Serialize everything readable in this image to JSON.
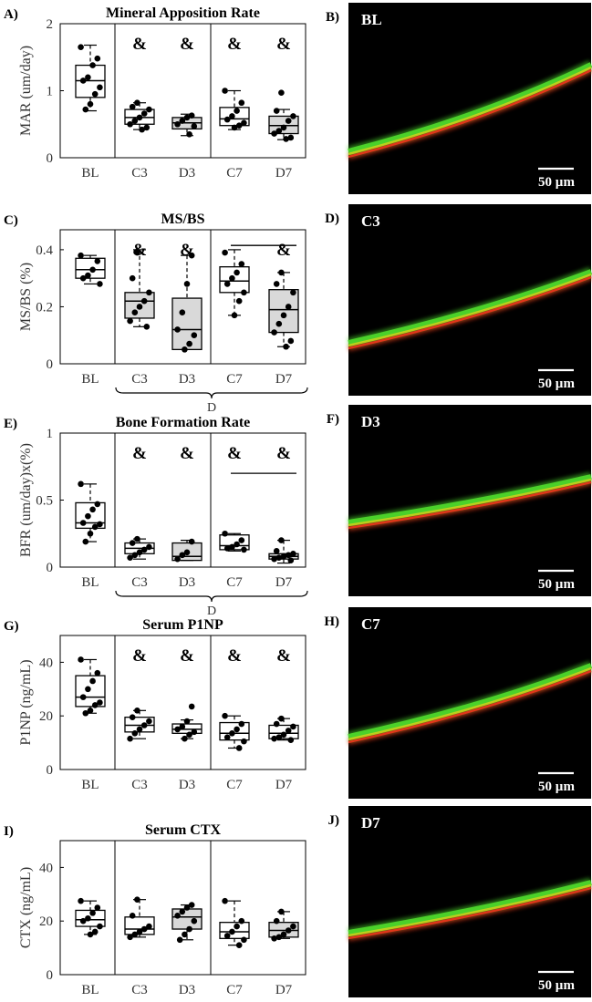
{
  "figure": {
    "panel_letters": [
      "A)",
      "B)",
      "C)",
      "D)",
      "E)",
      "F)",
      "G)",
      "H)",
      "I)",
      "J)"
    ],
    "colors": {
      "box_fill_control": "#ffffff",
      "box_fill_disuse": "#d9d9d9",
      "points": "#000000",
      "image_bg": "#000000",
      "green": "#4bd12a",
      "red": "#e0361a",
      "yellow": "#c9d21c"
    }
  },
  "chart_data": [
    {
      "id": "A",
      "type": "box",
      "title": "Mineral Apposition Rate",
      "ylabel": "MAR (um/day)",
      "ylim": [
        0,
        2
      ],
      "yticks": [
        0,
        1,
        2
      ],
      "categories": [
        "BL",
        "C3",
        "D3",
        "C7",
        "D7"
      ],
      "shaded": [
        false,
        false,
        true,
        false,
        true
      ],
      "boxes": [
        {
          "q1": 0.9,
          "median": 1.15,
          "q3": 1.38,
          "lo": 0.7,
          "hi": 1.68
        },
        {
          "q1": 0.5,
          "median": 0.6,
          "q3": 0.72,
          "lo": 0.42,
          "hi": 0.82
        },
        {
          "q1": 0.43,
          "median": 0.52,
          "q3": 0.6,
          "lo": 0.33,
          "hi": 0.65
        },
        {
          "q1": 0.48,
          "median": 0.58,
          "q3": 0.75,
          "lo": 0.42,
          "hi": 1.0
        },
        {
          "q1": 0.36,
          "median": 0.48,
          "q3": 0.62,
          "lo": 0.27,
          "hi": 0.72
        }
      ],
      "points": [
        [
          1.65,
          1.48,
          1.38,
          1.2,
          1.15,
          1.05,
          0.95,
          0.8,
          0.72
        ],
        [
          0.82,
          0.76,
          0.72,
          0.66,
          0.6,
          0.55,
          0.5,
          0.45,
          0.42
        ],
        [
          0.63,
          0.6,
          0.55,
          0.5,
          0.47,
          0.35
        ],
        [
          1.0,
          0.82,
          0.7,
          0.62,
          0.57,
          0.52,
          0.48,
          0.45
        ],
        [
          0.97,
          0.7,
          0.62,
          0.55,
          0.45,
          0.4,
          0.36,
          0.3,
          0.28
        ]
      ],
      "markers": [
        {
          "cat": 1,
          "label": "&"
        },
        {
          "cat": 2,
          "label": "&"
        },
        {
          "cat": 3,
          "label": "&"
        },
        {
          "cat": 4,
          "label": "&"
        }
      ],
      "bars": [],
      "bracket": null
    },
    {
      "id": "C",
      "type": "box",
      "title": "MS/BS",
      "ylabel": "MS/BS (%)",
      "ylim": [
        0,
        0.47
      ],
      "yticks": [
        0,
        0.2,
        0.4
      ],
      "categories": [
        "BL",
        "C3",
        "D3",
        "C7",
        "D7"
      ],
      "shaded": [
        false,
        true,
        true,
        false,
        true
      ],
      "boxes": [
        {
          "q1": 0.3,
          "median": 0.33,
          "q3": 0.37,
          "lo": 0.28,
          "hi": 0.38
        },
        {
          "q1": 0.16,
          "median": 0.22,
          "q3": 0.25,
          "lo": 0.13,
          "hi": 0.4
        },
        {
          "q1": 0.05,
          "median": 0.12,
          "q3": 0.23,
          "lo": 0.05,
          "hi": 0.38
        },
        {
          "q1": 0.25,
          "median": 0.29,
          "q3": 0.34,
          "lo": 0.17,
          "hi": 0.4
        },
        {
          "q1": 0.11,
          "median": 0.19,
          "q3": 0.26,
          "lo": 0.06,
          "hi": 0.32
        }
      ],
      "points": [
        [
          0.38,
          0.36,
          0.33,
          0.31,
          0.3,
          0.28
        ],
        [
          0.39,
          0.3,
          0.25,
          0.22,
          0.2,
          0.18,
          0.15,
          0.13
        ],
        [
          0.38,
          0.28,
          0.18,
          0.12,
          0.1,
          0.07,
          0.05
        ],
        [
          0.39,
          0.35,
          0.32,
          0.3,
          0.28,
          0.25,
          0.22,
          0.17
        ],
        [
          0.32,
          0.28,
          0.25,
          0.2,
          0.17,
          0.14,
          0.11,
          0.08,
          0.06
        ]
      ],
      "markers": [
        {
          "cat": 1,
          "label": "&"
        },
        {
          "cat": 2,
          "label": "&"
        },
        {
          "cat": 4,
          "label": "&"
        }
      ],
      "bars": [
        {
          "from": 3,
          "to": 4,
          "y": 0.415
        }
      ],
      "bracket": {
        "from": 1,
        "to": 4,
        "label": "D"
      }
    },
    {
      "id": "E",
      "type": "box",
      "title": "Bone Formation Rate",
      "ylabel": "BFR (um/day)x(%)",
      "ylim": [
        0,
        1
      ],
      "yticks": [
        0,
        0.5,
        1
      ],
      "categories": [
        "BL",
        "C3",
        "D3",
        "C7",
        "D7"
      ],
      "shaded": [
        false,
        false,
        true,
        false,
        true
      ],
      "boxes": [
        {
          "q1": 0.29,
          "median": 0.33,
          "q3": 0.48,
          "lo": 0.19,
          "hi": 0.62
        },
        {
          "q1": 0.1,
          "median": 0.14,
          "q3": 0.18,
          "lo": 0.06,
          "hi": 0.21
        },
        {
          "q1": 0.05,
          "median": 0.08,
          "q3": 0.18,
          "lo": 0.05,
          "hi": 0.2
        },
        {
          "q1": 0.13,
          "median": 0.16,
          "q3": 0.24,
          "lo": 0.12,
          "hi": 0.25
        },
        {
          "q1": 0.06,
          "median": 0.08,
          "q3": 0.1,
          "lo": 0.03,
          "hi": 0.2
        }
      ],
      "points": [
        [
          0.62,
          0.47,
          0.43,
          0.38,
          0.33,
          0.32,
          0.3,
          0.25,
          0.19
        ],
        [
          0.21,
          0.18,
          0.15,
          0.13,
          0.11,
          0.09,
          0.07
        ],
        [
          0.19,
          0.11,
          0.09,
          0.06
        ],
        [
          0.25,
          0.2,
          0.17,
          0.15,
          0.14,
          0.13
        ],
        [
          0.2,
          0.12,
          0.1,
          0.09,
          0.08,
          0.07,
          0.06,
          0.05
        ]
      ],
      "markers": [
        {
          "cat": 1,
          "label": "&"
        },
        {
          "cat": 2,
          "label": "&"
        },
        {
          "cat": 3,
          "label": "&"
        },
        {
          "cat": 4,
          "label": "&"
        }
      ],
      "bars": [
        {
          "from": 3,
          "to": 4,
          "y": 0.7
        }
      ],
      "bracket": {
        "from": 1,
        "to": 4,
        "label": "D"
      }
    },
    {
      "id": "G",
      "type": "box",
      "title": "Serum P1NP",
      "ylabel": "P1NP (ng/mL)",
      "ylim": [
        0,
        50
      ],
      "yticks": [
        0,
        20,
        40
      ],
      "categories": [
        "BL",
        "C3",
        "D3",
        "C7",
        "D7"
      ],
      "shaded": [
        false,
        false,
        false,
        false,
        false
      ],
      "boxes": [
        {
          "q1": 23.5,
          "median": 27,
          "q3": 35,
          "lo": 21,
          "hi": 41
        },
        {
          "q1": 14,
          "median": 16.5,
          "q3": 19.5,
          "lo": 11.5,
          "hi": 22
        },
        {
          "q1": 13.5,
          "median": 15,
          "q3": 17,
          "lo": 11.5,
          "hi": 18.5
        },
        {
          "q1": 11,
          "median": 13.5,
          "q3": 17.5,
          "lo": 8,
          "hi": 20
        },
        {
          "q1": 11.5,
          "median": 13.5,
          "q3": 16.5,
          "lo": 11,
          "hi": 19
        }
      ],
      "points": [
        [
          41,
          36,
          33,
          30,
          27,
          25,
          24,
          22,
          21
        ],
        [
          22,
          19.5,
          18,
          16.5,
          15,
          13.5,
          11.5
        ],
        [
          23.5,
          18,
          16,
          15,
          14,
          13,
          11.5
        ],
        [
          20,
          17,
          15,
          13.5,
          12,
          10.5,
          8
        ],
        [
          19,
          17,
          16,
          14.5,
          13,
          12,
          11.5,
          11
        ]
      ],
      "markers": [
        {
          "cat": 1,
          "label": "&"
        },
        {
          "cat": 2,
          "label": "&"
        },
        {
          "cat": 3,
          "label": "&"
        },
        {
          "cat": 4,
          "label": "&"
        }
      ],
      "bars": [],
      "bracket": null
    },
    {
      "id": "I",
      "type": "box",
      "title": "Serum CTX",
      "ylabel": "CTX (ng/mL)",
      "ylim": [
        0,
        50
      ],
      "yticks": [
        0,
        20,
        40
      ],
      "categories": [
        "BL",
        "C3",
        "D3",
        "C7",
        "D7"
      ],
      "shaded": [
        false,
        false,
        true,
        false,
        true
      ],
      "boxes": [
        {
          "q1": 18,
          "median": 20.5,
          "q3": 24,
          "lo": 15,
          "hi": 27.5
        },
        {
          "q1": 15,
          "median": 17,
          "q3": 21.5,
          "lo": 14,
          "hi": 28
        },
        {
          "q1": 17,
          "median": 21.5,
          "q3": 24.5,
          "lo": 13,
          "hi": 26
        },
        {
          "q1": 13.5,
          "median": 16,
          "q3": 19.5,
          "lo": 11,
          "hi": 27.5
        },
        {
          "q1": 14,
          "median": 16.5,
          "q3": 19.5,
          "lo": 13.5,
          "hi": 23.5
        }
      ],
      "points": [
        [
          27.5,
          25,
          23,
          21,
          20,
          18,
          16,
          15
        ],
        [
          28,
          22,
          18,
          17,
          16,
          15,
          14
        ],
        [
          26,
          25,
          23.5,
          22,
          20,
          17,
          15,
          13
        ],
        [
          27.5,
          20,
          18,
          16,
          14.5,
          13,
          11
        ],
        [
          23.5,
          20,
          18,
          16.5,
          15,
          14,
          13.5
        ]
      ],
      "markers": [],
      "bars": [],
      "bracket": null
    }
  ],
  "images": [
    {
      "id": "B",
      "label": "BL",
      "scale": "50 µm"
    },
    {
      "id": "D",
      "label": "C3",
      "scale": "50 µm"
    },
    {
      "id": "F",
      "label": "D3",
      "scale": "50 µm"
    },
    {
      "id": "H",
      "label": "C7",
      "scale": "50 µm"
    },
    {
      "id": "J",
      "label": "D7",
      "scale": "50 µm"
    }
  ]
}
